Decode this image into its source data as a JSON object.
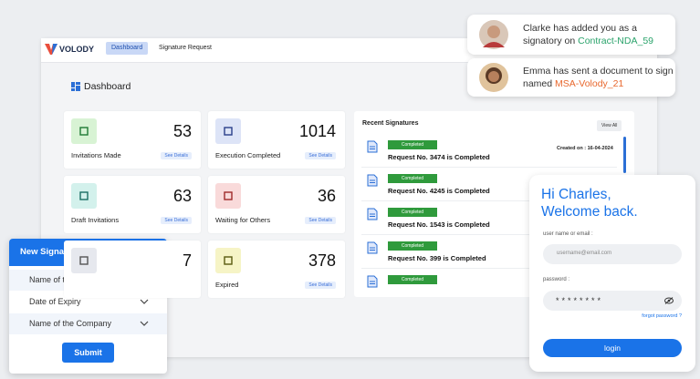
{
  "nav": {
    "logo": "VOLODY",
    "tabs": [
      "Dashboard",
      "Signature Request"
    ]
  },
  "page_title": "Dashboard",
  "stats": [
    {
      "value": 53,
      "label": "Invitations Made",
      "link": "See Details"
    },
    {
      "value": 1014,
      "label": "Execution Completed",
      "link": "See Details"
    },
    {
      "value": 63,
      "label": "Draft Invitations",
      "link": "See Details"
    },
    {
      "value": 36,
      "label": "Waiting for Others",
      "link": "See Details"
    },
    {
      "value": 7
    },
    {
      "value": 378,
      "label": "Expired",
      "link": "See Details"
    }
  ],
  "recent": {
    "title": "Recent Signatures",
    "view_all": "View All",
    "items": [
      {
        "status": "Completed",
        "text": "Request No. 3474 is Completed",
        "created": "Created on : 16-04-2024"
      },
      {
        "status": "Completed",
        "text": "Request No. 4245 is Completed"
      },
      {
        "status": "Completed",
        "text": "Request No. 1543 is Completed"
      },
      {
        "status": "Completed",
        "text": "Request No. 399 is Completed"
      },
      {
        "status": "Completed"
      }
    ]
  },
  "notifications": [
    {
      "text": "Clarke has added you as a signatory on",
      "link": "Contract-NDA_59"
    },
    {
      "text": "Emma has sent a document to sign named",
      "link": "MSA-Volody_21"
    }
  ],
  "login": {
    "greeting": [
      "Hi Charles,",
      "Welcome back."
    ],
    "username_label": "user name or email :",
    "username_placeholder": "username@email.com",
    "password_label": "password :",
    "password_value": "********",
    "forgot": "forgot password ?",
    "button": "login"
  },
  "form": {
    "title": "New Signature Request",
    "fields": [
      "Name of the signatory",
      "Date of Expiry",
      "Name of the Company"
    ],
    "submit": "Submit"
  }
}
